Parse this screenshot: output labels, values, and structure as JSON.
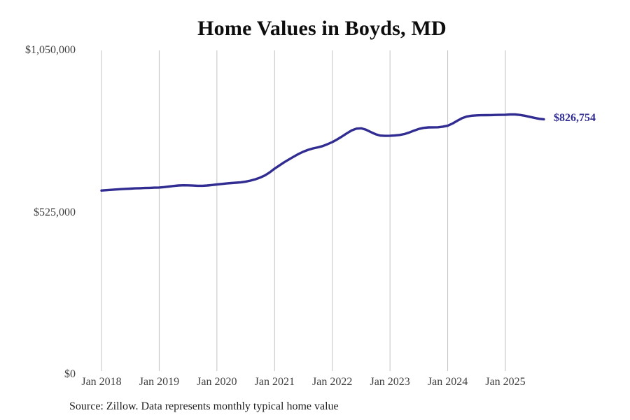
{
  "title": "Home Values in Boyds, MD",
  "source_note": "Source: Zillow. Data represents monthly typical home value",
  "end_label": "$826,754",
  "colors": {
    "line": "#302c91",
    "grid": "#c2c2c2",
    "axis_text": "#3f3f3f",
    "title_text": "#0d0d0d",
    "end_label_text": "#302c91",
    "background": "#ffffff"
  },
  "chart_data": {
    "type": "line",
    "title": "Home Values in Boyds, MD",
    "ylabel": "",
    "xlabel": "",
    "ylim": [
      0,
      1050000
    ],
    "y_ticks": [
      0,
      525000,
      1050000
    ],
    "y_tick_labels": [
      "$0",
      "$525,000",
      "$1,050,000"
    ],
    "x_tick_labels": [
      "Jan 2018",
      "Jan 2019",
      "Jan 2020",
      "Jan 2021",
      "Jan 2022",
      "Jan 2023",
      "Jan 2024",
      "Jan 2025"
    ],
    "x_tick_indices": [
      0,
      12,
      24,
      36,
      48,
      60,
      72,
      84
    ],
    "grid": "vertical-only",
    "legend": "none",
    "last_value": 826754,
    "last_value_label": "$826,754",
    "series": [
      {
        "name": "Monthly typical home value",
        "x": [
          "2018-01",
          "2018-02",
          "2018-03",
          "2018-04",
          "2018-05",
          "2018-06",
          "2018-07",
          "2018-08",
          "2018-09",
          "2018-10",
          "2018-11",
          "2018-12",
          "2019-01",
          "2019-02",
          "2019-03",
          "2019-04",
          "2019-05",
          "2019-06",
          "2019-07",
          "2019-08",
          "2019-09",
          "2019-10",
          "2019-11",
          "2019-12",
          "2020-01",
          "2020-02",
          "2020-03",
          "2020-04",
          "2020-05",
          "2020-06",
          "2020-07",
          "2020-08",
          "2020-09",
          "2020-10",
          "2020-11",
          "2020-12",
          "2021-01",
          "2021-02",
          "2021-03",
          "2021-04",
          "2021-05",
          "2021-06",
          "2021-07",
          "2021-08",
          "2021-09",
          "2021-10",
          "2021-11",
          "2021-12",
          "2022-01",
          "2022-02",
          "2022-03",
          "2022-04",
          "2022-05",
          "2022-06",
          "2022-07",
          "2022-08",
          "2022-09",
          "2022-10",
          "2022-11",
          "2022-12",
          "2023-01",
          "2023-02",
          "2023-03",
          "2023-04",
          "2023-05",
          "2023-06",
          "2023-07",
          "2023-08",
          "2023-09",
          "2023-10",
          "2023-11",
          "2023-12",
          "2024-01",
          "2024-02",
          "2024-03",
          "2024-04",
          "2024-05",
          "2024-06",
          "2024-07",
          "2024-08",
          "2024-09",
          "2024-10",
          "2024-11",
          "2024-12",
          "2025-01",
          "2025-02",
          "2025-03",
          "2025-04",
          "2025-05",
          "2025-06",
          "2025-07",
          "2025-08",
          "2025-09"
        ],
        "values": [
          596000,
          597100,
          598200,
          599400,
          600500,
          601400,
          602200,
          602900,
          603500,
          604100,
          604700,
          605200,
          605800,
          607000,
          608800,
          610700,
          612200,
          613000,
          612800,
          612000,
          611400,
          611500,
          612300,
          613800,
          615600,
          617400,
          619000,
          620300,
          621400,
          622800,
          625000,
          628200,
          632500,
          638000,
          645000,
          655000,
          667000,
          677500,
          687500,
          697000,
          706000,
          714500,
          722000,
          728000,
          732500,
          736000,
          740000,
          746000,
          753000,
          761500,
          771000,
          781000,
          790500,
          796500,
          797500,
          793000,
          785500,
          778500,
          774000,
          773000,
          773500,
          774500,
          776000,
          779000,
          784000,
          790000,
          795500,
          799000,
          800500,
          800800,
          801000,
          803000,
          806000,
          813000,
          822000,
          830500,
          836000,
          838500,
          839500,
          840000,
          840200,
          840500,
          840800,
          841200,
          841500,
          842500,
          842500,
          841000,
          838500,
          835000,
          831500,
          828500,
          826754
        ]
      }
    ]
  }
}
